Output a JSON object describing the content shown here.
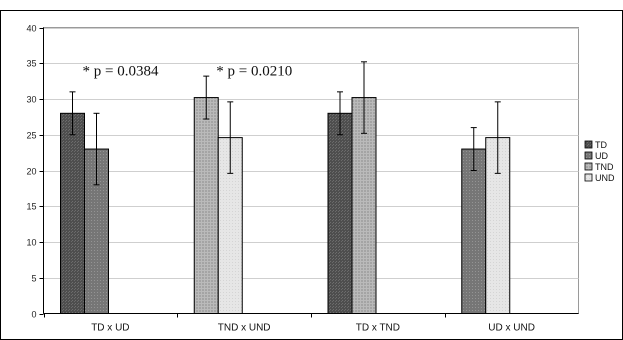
{
  "chart_data": {
    "type": "bar",
    "title": "",
    "xlabel": "",
    "ylabel": "",
    "ylim": [
      0,
      40
    ],
    "yticks": [
      0,
      5,
      10,
      15,
      20,
      25,
      30,
      35,
      40
    ],
    "grid": "horizontal",
    "legend_position": "right",
    "categories": [
      "TD x UD",
      "TND x UND",
      "TD x TND",
      "UD x UND"
    ],
    "series": [
      {
        "name": "TD",
        "color": "#5b5b5b",
        "pattern": "dark-dots",
        "values": [
          28,
          null,
          28,
          null
        ],
        "errors": [
          3,
          null,
          3,
          null
        ]
      },
      {
        "name": "UD",
        "color": "#7c7c7c",
        "pattern": "mid-dots",
        "values": [
          23,
          null,
          null,
          23
        ],
        "errors": [
          5,
          null,
          null,
          3
        ]
      },
      {
        "name": "TND",
        "color": "#a3a3a3",
        "pattern": "light-grid",
        "values": [
          null,
          30.2,
          30.2,
          null
        ],
        "errors": [
          null,
          3,
          5,
          null
        ]
      },
      {
        "name": "UND",
        "color": "#e2e2e2",
        "pattern": "very-light",
        "values": [
          null,
          24.6,
          null,
          24.6
        ],
        "errors": [
          null,
          5,
          null,
          5
        ]
      }
    ],
    "groups": [
      {
        "category": "TD x UD",
        "bars": [
          "TD",
          "UD"
        ]
      },
      {
        "category": "TND x UND",
        "bars": [
          "TND",
          "UND"
        ]
      },
      {
        "category": "TD x TND",
        "bars": [
          "TD",
          "TND"
        ]
      },
      {
        "category": "UD x UND",
        "bars": [
          "UD",
          "UND"
        ]
      }
    ],
    "annotations": [
      {
        "text": "* p = 0.0384",
        "category": "TD x UD",
        "y": 34
      },
      {
        "text": "* p = 0.0210",
        "category": "TND x UND",
        "y": 34
      }
    ]
  }
}
